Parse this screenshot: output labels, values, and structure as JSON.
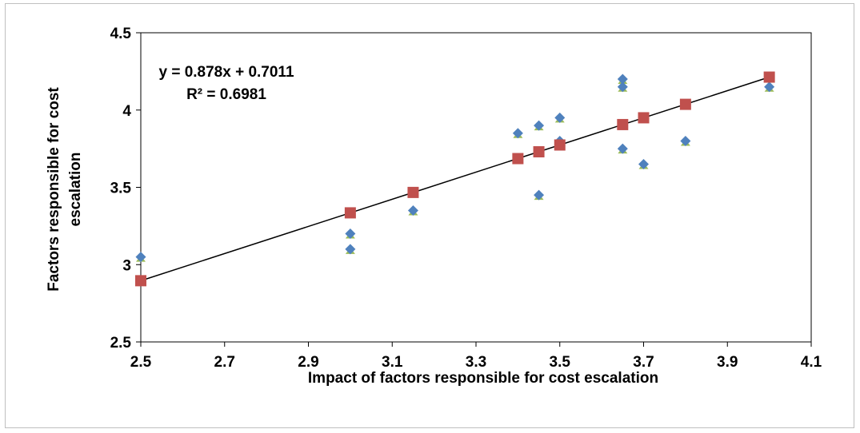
{
  "chart_data": {
    "type": "scatter",
    "xlabel": "Impact of factors responsible for cost escalation",
    "ylabel_lines": [
      "Factors responsible for cost",
      "escalation"
    ],
    "xlim": [
      2.5,
      4.1
    ],
    "ylim": [
      2.5,
      4.5
    ],
    "x_ticks": [
      "2.5",
      "2.7",
      "2.9",
      "3.1",
      "3.3",
      "3.5",
      "3.7",
      "3.9",
      "4.1"
    ],
    "y_ticks": [
      "2.5",
      "3",
      "3.5",
      "4",
      "4.5"
    ],
    "grid": false,
    "legend": "none",
    "annotations": {
      "equation": "y = 0.878x + 0.7011",
      "r_squared": "R² = 0.6981"
    },
    "series": [
      {
        "marker": "diamond",
        "color": "#4F81BD",
        "shadow_color": "#9BBB59",
        "points": [
          [
            2.5,
            3.05
          ],
          [
            3.0,
            3.2
          ],
          [
            3.0,
            3.1
          ],
          [
            3.15,
            3.35
          ],
          [
            3.4,
            3.85
          ],
          [
            3.45,
            3.9
          ],
          [
            3.45,
            3.45
          ],
          [
            3.5,
            3.95
          ],
          [
            3.5,
            3.8
          ],
          [
            3.65,
            4.2
          ],
          [
            3.65,
            4.15
          ],
          [
            3.65,
            3.75
          ],
          [
            3.7,
            3.65
          ],
          [
            3.8,
            3.8
          ],
          [
            4.0,
            4.15
          ]
        ]
      },
      {
        "marker": "square",
        "color": "#C0504D",
        "points": [
          [
            2.5,
            2.896
          ],
          [
            3.0,
            3.335
          ],
          [
            3.15,
            3.467
          ],
          [
            3.4,
            3.686
          ],
          [
            3.45,
            3.73
          ],
          [
            3.5,
            3.774
          ],
          [
            3.65,
            3.906
          ],
          [
            3.7,
            3.95
          ],
          [
            3.8,
            4.037
          ],
          [
            4.0,
            4.213
          ]
        ]
      }
    ],
    "trendline": {
      "color": "#000000",
      "slope": 0.878,
      "intercept": 0.7011,
      "x_range": [
        2.5,
        4.0
      ]
    }
  }
}
